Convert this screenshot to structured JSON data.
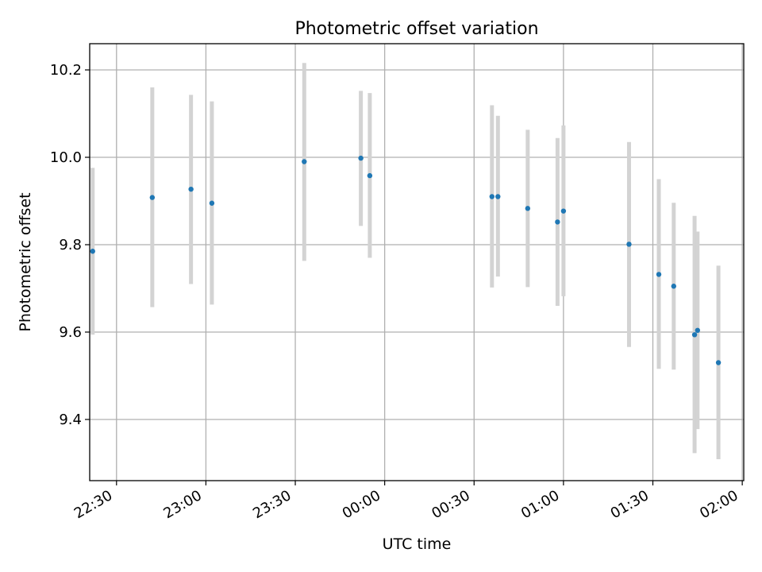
{
  "chart_data": {
    "type": "scatter",
    "title": "Photometric offset variation",
    "xlabel": "UTC time",
    "ylabel": "Photometric offset",
    "x_axis": "time",
    "x_ticks": [
      "22:30",
      "23:00",
      "23:30",
      "00:00",
      "00:30",
      "01:00",
      "01:30",
      "02:00"
    ],
    "y_ticks": [
      "9.4",
      "9.6",
      "9.8",
      "10.0",
      "10.2"
    ],
    "xlim": [
      "22:21",
      "02:00.5"
    ],
    "ylim": [
      9.26,
      10.26
    ],
    "grid": true,
    "colors": {
      "points": "#1f77b4",
      "errorbars": "#d3d3d3",
      "grid": "#b0b0b0",
      "axes": "#000000"
    },
    "series": [
      {
        "x": [
          "22:22",
          "22:42",
          "22:55",
          "23:02",
          "23:33",
          "23:52",
          "23:55",
          "00:36",
          "00:38",
          "00:48",
          "00:58",
          "01:00",
          "01:22",
          "01:32",
          "01:37",
          "01:44",
          "01:45",
          "01:52"
        ],
        "y": [
          9.785,
          9.908,
          9.927,
          9.895,
          9.99,
          9.998,
          9.958,
          9.91,
          9.91,
          9.883,
          9.852,
          9.877,
          9.801,
          9.732,
          9.705,
          9.594,
          9.604,
          9.53
        ],
        "yerr_low": [
          9.594,
          9.657,
          9.71,
          9.663,
          9.763,
          9.843,
          9.77,
          9.702,
          9.727,
          9.703,
          9.66,
          9.682,
          9.566,
          9.516,
          9.514,
          9.323,
          9.378,
          9.309
        ],
        "yerr_high": [
          9.976,
          10.16,
          10.143,
          10.128,
          10.216,
          10.152,
          10.147,
          10.119,
          10.095,
          10.063,
          10.044,
          10.073,
          10.035,
          9.95,
          9.896,
          9.866,
          9.83,
          9.752
        ]
      }
    ]
  }
}
